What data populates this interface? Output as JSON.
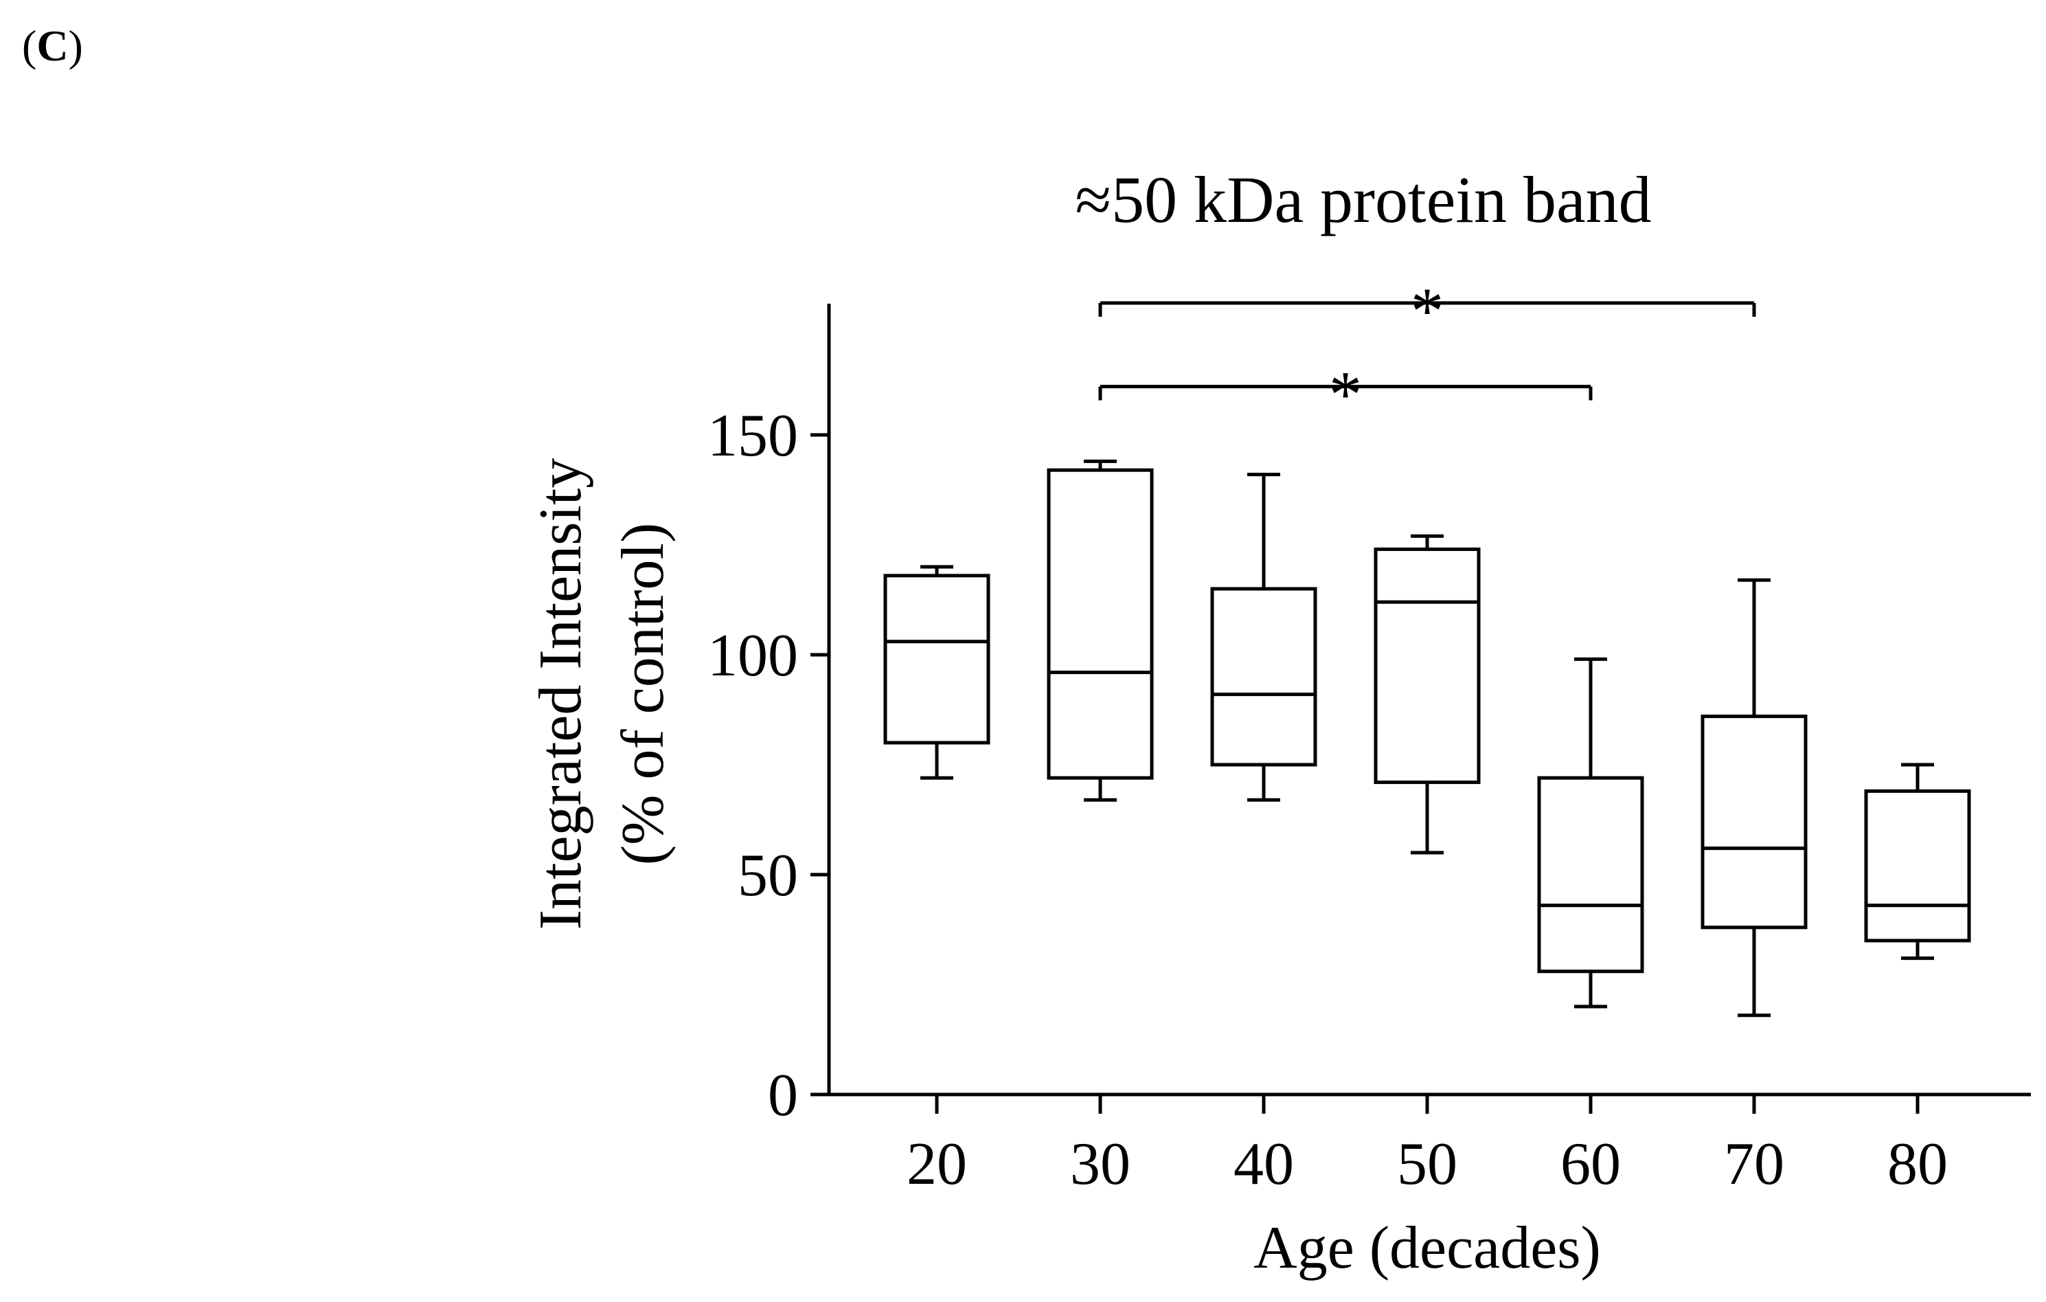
{
  "panel": {
    "open_paren": "(",
    "letter": "C",
    "close_paren": ")"
  },
  "colors": {
    "stroke": "#000000",
    "background": "#ffffff",
    "box_fill": "#ffffff"
  },
  "chart_data": {
    "type": "box",
    "title": "≈50 kDa protein band",
    "xlabel": "Age (decades)",
    "ylabel_lines": [
      "Integrated Intensity",
      "(% of control)"
    ],
    "categories": [
      "20",
      "30",
      "40",
      "50",
      "60",
      "70",
      "80"
    ],
    "ylim": [
      0,
      180
    ],
    "yticks": [
      0,
      50,
      100,
      150
    ],
    "ytick_labels": [
      "0",
      "50",
      "100",
      "150"
    ],
    "grid": false,
    "boxes": [
      {
        "category": "20",
        "min": 72,
        "q1": 80,
        "median": 103,
        "q3": 118,
        "max": 120
      },
      {
        "category": "30",
        "min": 67,
        "q1": 72,
        "median": 96,
        "q3": 142,
        "max": 144
      },
      {
        "category": "40",
        "min": 67,
        "q1": 75,
        "median": 91,
        "q3": 115,
        "max": 141
      },
      {
        "category": "50",
        "min": 55,
        "q1": 71,
        "median": 112,
        "q3": 124,
        "max": 127
      },
      {
        "category": "60",
        "min": 20,
        "q1": 28,
        "median": 43,
        "q3": 72,
        "max": 99
      },
      {
        "category": "70",
        "min": 18,
        "q1": 38,
        "median": 56,
        "q3": 86,
        "max": 117
      },
      {
        "category": "80",
        "min": 31,
        "q1": 35,
        "median": 43,
        "q3": 69,
        "max": 75
      }
    ],
    "significance": [
      {
        "from": "30",
        "to": "60",
        "y": 161,
        "label": "*"
      },
      {
        "from": "30",
        "to": "70",
        "y": 180,
        "label": "*"
      }
    ]
  }
}
